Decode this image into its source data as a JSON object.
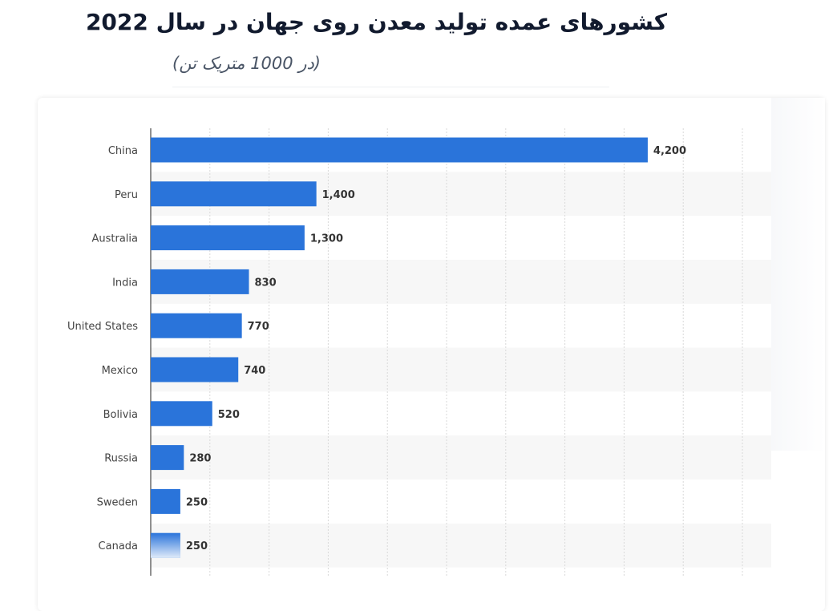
{
  "title": "کشورهای عمده تولید معدن روی جهان در سال 2022",
  "subtitle": "(در 1000 متریک تن)",
  "colors": {
    "bar": "#2a74da",
    "band": "#f7f7f7",
    "grid": "#d9d9d9"
  },
  "chart_data": {
    "type": "bar",
    "orientation": "horizontal",
    "title": "کشورهای عمده تولید معدن روی جهان در سال 2022",
    "subtitle": "(در 1000 متریک تن)",
    "categories": [
      "China",
      "Peru",
      "Australia",
      "India",
      "United States",
      "Mexico",
      "Bolivia",
      "Russia",
      "Sweden",
      "Canada"
    ],
    "values": [
      4200,
      1400,
      1300,
      830,
      770,
      740,
      520,
      280,
      250,
      250
    ],
    "value_labels": [
      "4,200",
      "1,400",
      "1,300",
      "830",
      "770",
      "740",
      "520",
      "280",
      "250",
      "250"
    ],
    "xlim": [
      0,
      5000
    ],
    "grid": true,
    "xlabel": "",
    "ylabel": ""
  }
}
